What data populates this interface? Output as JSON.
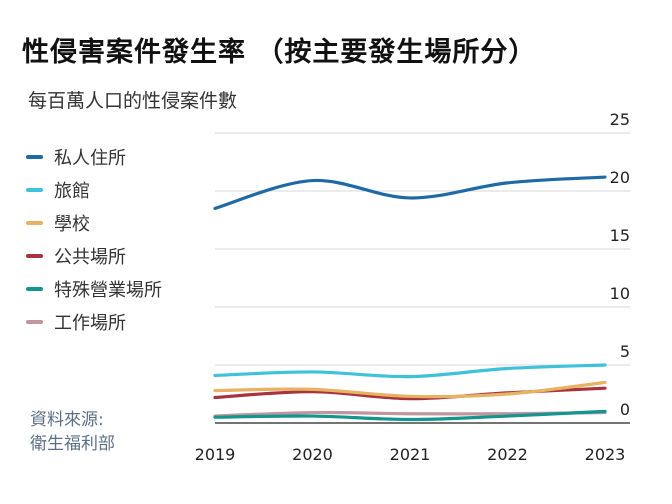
{
  "header": {
    "title": "性侵害案件發生率 （按主要發生場所分）",
    "subtitle": "每百萬人口的性侵案件數"
  },
  "source": {
    "line1": "資料來源:",
    "line2": "衛生福利部"
  },
  "chart_data": {
    "type": "line",
    "title": "性侵害案件發生率 （按主要發生場所分）",
    "subtitle": "每百萬人口的性侵案件數",
    "x": [
      "2019",
      "2020",
      "2021",
      "2022",
      "2023"
    ],
    "ylim": [
      0,
      25
    ],
    "yticks": [
      0,
      5,
      10,
      15,
      20,
      25
    ],
    "grid": true,
    "legend_position": "left",
    "series": [
      {
        "name": "私人住所",
        "color": "#1f6aa5",
        "values": [
          18.5,
          20.9,
          19.4,
          20.7,
          21.2
        ]
      },
      {
        "name": "旅館",
        "color": "#3ec1d9",
        "values": [
          4.1,
          4.4,
          4.0,
          4.7,
          5.0
        ]
      },
      {
        "name": "學校",
        "color": "#e8b264",
        "values": [
          2.8,
          2.9,
          2.3,
          2.5,
          3.5
        ]
      },
      {
        "name": "公共場所",
        "color": "#a8323e",
        "values": [
          2.2,
          2.7,
          2.1,
          2.6,
          3.0
        ]
      },
      {
        "name": "特殊營業場所",
        "color": "#15958f",
        "values": [
          0.5,
          0.6,
          0.3,
          0.6,
          1.0
        ]
      },
      {
        "name": "工作場所",
        "color": "#c2969e",
        "values": [
          0.6,
          0.9,
          0.8,
          0.8,
          0.9
        ]
      }
    ]
  }
}
